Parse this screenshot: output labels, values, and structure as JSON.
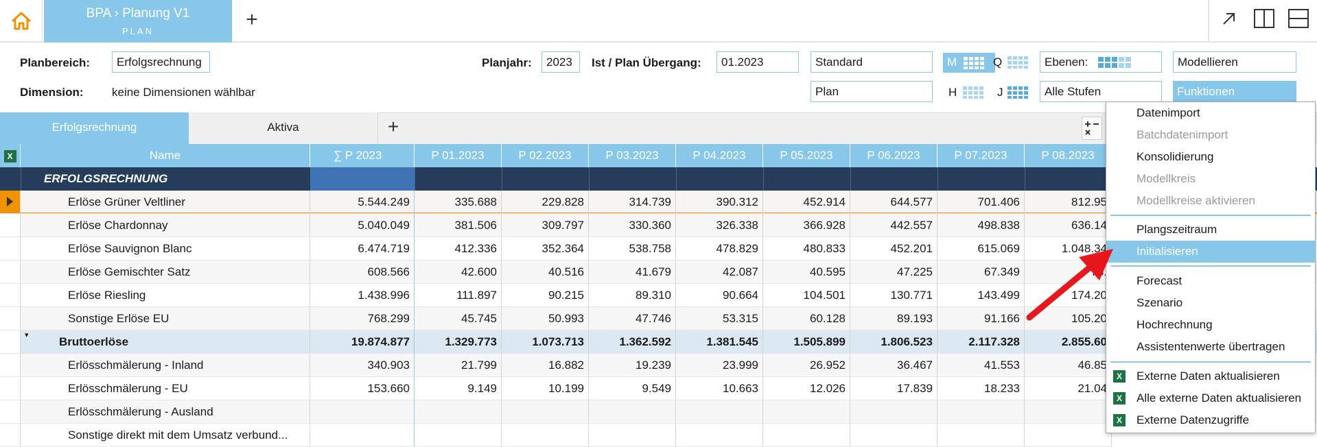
{
  "header": {
    "breadcrumb_app": "BPA",
    "breadcrumb_sep": "›",
    "breadcrumb_item": "Planung V1",
    "subtitle": "PLAN",
    "add_tab": "+"
  },
  "filters": {
    "planbereich_label": "Planbereich:",
    "planbereich_value": "Erfolgsrechnung",
    "dimension_label": "Dimension:",
    "dimension_value": "keine Dimensionen wählbar",
    "planjahr_label": "Planjahr:",
    "planjahr_value": "2023",
    "uebergang_label": "Ist / Plan Übergang:",
    "uebergang_value": "01.2023",
    "standard_value": "Standard",
    "plan_value": "Plan",
    "m_label": "M",
    "q_label": "Q",
    "h_label": "H",
    "j_label": "J",
    "ebenen_label": "Ebenen:",
    "stufen_value": "Alle Stufen",
    "modellieren_value": "Modellieren",
    "funktionen_value": "Funktionen"
  },
  "tabs": [
    {
      "label": "Erfolgsrechnung",
      "active": true
    },
    {
      "label": "Aktiva",
      "active": false
    }
  ],
  "tabs_add": "+",
  "grid": {
    "excel_icon": "X",
    "columns": [
      "Name",
      "∑  P  2023",
      "P 01.2023",
      "P 02.2023",
      "P 03.2023",
      "P 04.2023",
      "P 05.2023",
      "P 06.2023",
      "P 07.2023",
      "P 08.2023"
    ],
    "section_title": "ERFOLGSRECHNUNG",
    "rows": [
      {
        "name": "Erlöse Grüner Veltliner",
        "values": [
          "5.544.249",
          "335.688",
          "229.828",
          "314.739",
          "390.312",
          "452.914",
          "644.577",
          "701.406",
          "812.95"
        ]
      },
      {
        "name": "Erlöse Chardonnay",
        "values": [
          "5.040.049",
          "381.506",
          "309.797",
          "330.360",
          "326.338",
          "366.928",
          "442.557",
          "498.838",
          "636.14"
        ]
      },
      {
        "name": "Erlöse Sauvignon Blanc",
        "values": [
          "6.474.719",
          "412.336",
          "352.364",
          "538.758",
          "478.829",
          "480.833",
          "452.201",
          "615.069",
          "1.048.34"
        ]
      },
      {
        "name": "Erlöse Gemischter Satz",
        "values": [
          "608.566",
          "42.600",
          "40.516",
          "41.679",
          "42.087",
          "40.595",
          "47.225",
          "67.349",
          "78."
        ]
      },
      {
        "name": "Erlöse Riesling",
        "values": [
          "1.438.996",
          "111.897",
          "90.215",
          "89.310",
          "90.664",
          "104.501",
          "130.771",
          "143.499",
          "174.20"
        ]
      },
      {
        "name": "Sonstige Erlöse EU",
        "values": [
          "768.299",
          "45.745",
          "50.993",
          "47.746",
          "53.315",
          "60.128",
          "89.193",
          "91.166",
          "105.20"
        ]
      },
      {
        "name": "Bruttoerlöse",
        "values": [
          "19.874.877",
          "1.329.773",
          "1.073.713",
          "1.362.592",
          "1.381.545",
          "1.505.899",
          "1.806.523",
          "2.117.328",
          "2.855.60"
        ]
      },
      {
        "name": "Erlösschmälerung - Inland",
        "values": [
          "340.903",
          "21.799",
          "16.882",
          "19.239",
          "23.999",
          "26.952",
          "36.467",
          "41.553",
          "46.85"
        ]
      },
      {
        "name": "Erlösschmälerung - EU",
        "values": [
          "153.660",
          "9.149",
          "10.199",
          "9.549",
          "10.663",
          "12.026",
          "17.839",
          "18.233",
          "21.04"
        ]
      },
      {
        "name": "Erlösschmälerung - Ausland",
        "values": [
          "",
          "",
          "",
          "",
          "",
          "",
          "",
          "",
          ""
        ]
      },
      {
        "name": "Sonstige direkt mit dem Umsatz verbund...",
        "values": [
          "",
          "",
          "",
          "",
          "",
          "",
          "",
          "",
          ""
        ]
      }
    ]
  },
  "menu": {
    "items": [
      {
        "label": "Datenimport",
        "state": "normal"
      },
      {
        "label": "Batchdatenimport",
        "state": "disabled"
      },
      {
        "label": "Konsolidierung",
        "state": "normal"
      },
      {
        "label": "Modellkreis",
        "state": "disabled"
      },
      {
        "label": "Modellkreise aktivieren",
        "state": "disabled"
      },
      {
        "label": "Plangszeitraum",
        "state": "normal"
      },
      {
        "label": "Initialisieren",
        "state": "highlighted"
      },
      {
        "label": "Forecast",
        "state": "normal"
      },
      {
        "label": "Szenario",
        "state": "normal"
      },
      {
        "label": "Hochrechnung",
        "state": "normal"
      },
      {
        "label": "Assistentenwerte übertragen",
        "state": "normal"
      },
      {
        "label": "Externe Daten aktualisieren",
        "state": "normal"
      },
      {
        "label": "Alle externe Daten aktualisieren",
        "state": "normal"
      },
      {
        "label": "Externe Datenzugriffe",
        "state": "normal"
      }
    ],
    "excel_icon": "X"
  },
  "colors": {
    "accent": "#86c7ea",
    "section_bar": "#253d5b",
    "selection": "#f39200",
    "arrow": "#e8171d",
    "home_icon": "#f39200"
  }
}
